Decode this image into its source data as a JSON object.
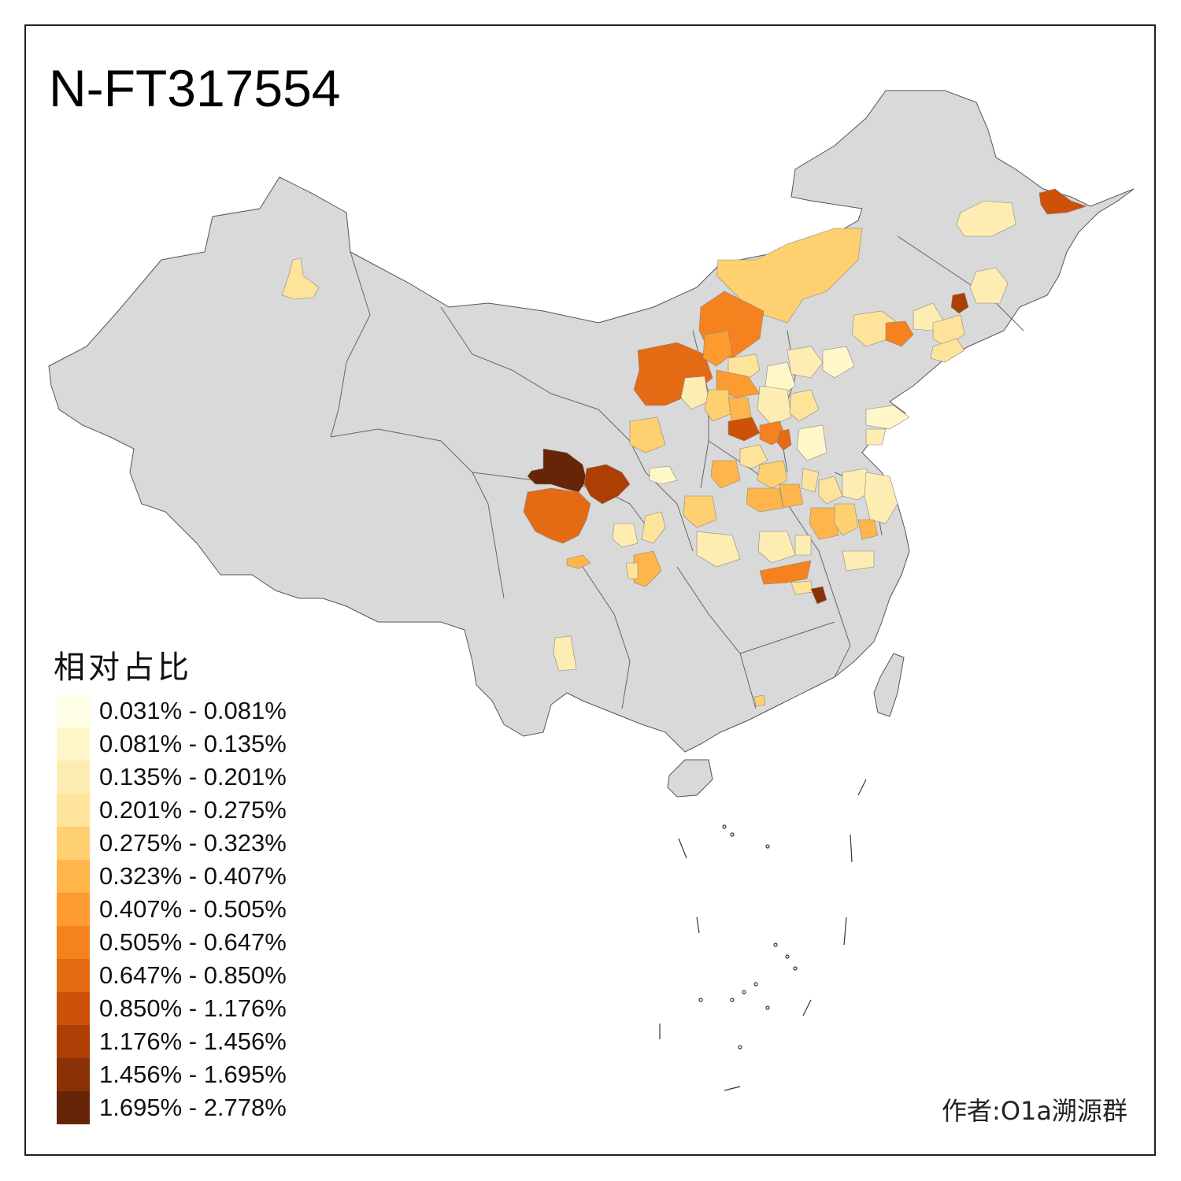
{
  "title": "N-FT317554",
  "legend": {
    "title": "相对占比",
    "items": [
      {
        "label": "0.031% - 0.081%",
        "color": "#FFFFE5"
      },
      {
        "label": "0.081% - 0.135%",
        "color": "#FFF7C9"
      },
      {
        "label": "0.135% - 0.201%",
        "color": "#FEEDB2"
      },
      {
        "label": "0.201% - 0.275%",
        "color": "#FEE39A"
      },
      {
        "label": "0.275% - 0.323%",
        "color": "#FED06F"
      },
      {
        "label": "0.323% - 0.407%",
        "color": "#FEB64B"
      },
      {
        "label": "0.407% - 0.505%",
        "color": "#FD9A30"
      },
      {
        "label": "0.505% - 0.647%",
        "color": "#F5821F"
      },
      {
        "label": "0.647% - 0.850%",
        "color": "#E46A13"
      },
      {
        "label": "0.850% - 1.176%",
        "color": "#CD5108"
      },
      {
        "label": "1.176% - 1.456%",
        "color": "#AD3F05"
      },
      {
        "label": "1.456% - 1.695%",
        "color": "#8B3106"
      },
      {
        "label": "1.695% - 2.778%",
        "color": "#662506"
      }
    ]
  },
  "credit": "作者:O1a溯源群",
  "colors": {
    "base_land": "#D9D9D9",
    "border": "#555555",
    "frame": "#222222"
  }
}
